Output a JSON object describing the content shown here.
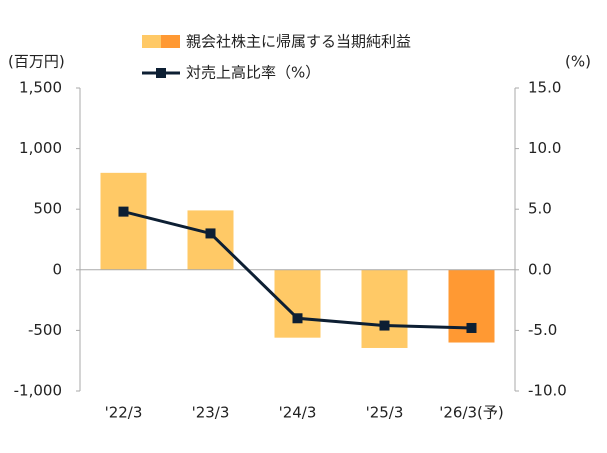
{
  "chart_data": {
    "type": "bar-line",
    "y_unit_label": "(百万円)",
    "y2_unit_label": "(%)",
    "categories": [
      "'22/3",
      "'23/3",
      "'24/3",
      "'25/3",
      "'26/3(予)"
    ],
    "series": [
      {
        "name": "親会社株主に帰属する当期純利益",
        "type": "bar",
        "colors": [
          "#ffc966",
          "#ffc966",
          "#ffc966",
          "#ffc966",
          "#ff9933"
        ],
        "values": [
          800,
          490,
          -560,
          -645,
          -600
        ]
      },
      {
        "name": "対売上高比率（%）",
        "type": "line",
        "axis": "y2",
        "color": "#0d1f33",
        "values": [
          4.8,
          3.0,
          -4.0,
          -4.6,
          -4.8
        ]
      }
    ],
    "ylim": [
      -1000,
      1500
    ],
    "yticks": [
      {
        "value": 1500,
        "label": "1,500"
      },
      {
        "value": 1000,
        "label": "1,000"
      },
      500,
      0,
      -500,
      {
        "value": -1000,
        "label": "-1,000",
        "color": "#e00000"
      }
    ],
    "y2lim": [
      -10,
      15
    ],
    "y2ticks": [
      {
        "value": 15,
        "label": "15.0"
      },
      {
        "value": 10,
        "label": "10.0"
      },
      {
        "value": 5,
        "label": "5.0"
      },
      {
        "value": 0,
        "label": "0.0"
      },
      {
        "value": -5,
        "label": "-5.0"
      },
      {
        "value": -10,
        "label": "-10.0",
        "color": "#e00000"
      }
    ]
  }
}
